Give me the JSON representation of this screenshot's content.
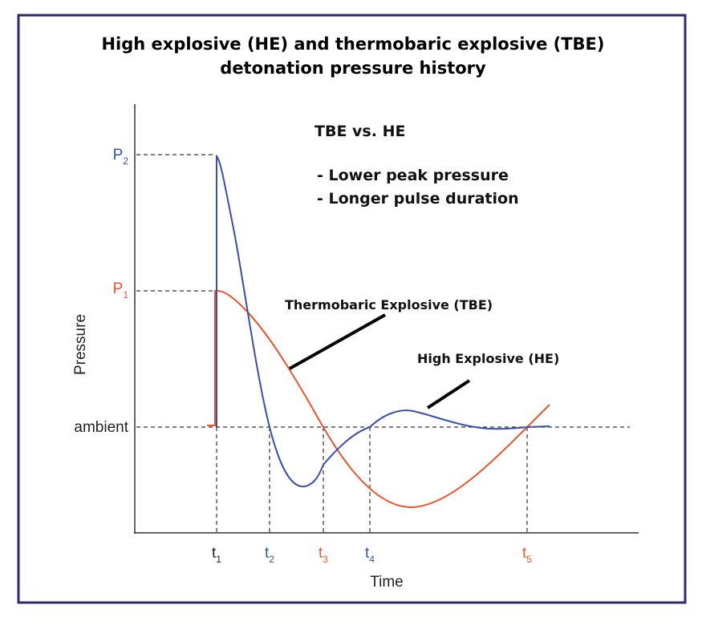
{
  "header": {
    "title_lines": [
      "High explosive (HE) and thermobaric explosive (TBE)",
      "detonation pressure history"
    ]
  },
  "axes": {
    "y_label": "Pressure",
    "x_label": "Time",
    "ambient": "ambient"
  },
  "y_markers": [
    {
      "base": "P",
      "sub": "2"
    },
    {
      "base": "P",
      "sub": "1"
    }
  ],
  "x_markers": [
    {
      "base": "t",
      "sub": "1"
    },
    {
      "base": "t",
      "sub": "2"
    },
    {
      "base": "t",
      "sub": "3"
    },
    {
      "base": "t",
      "sub": "4"
    },
    {
      "base": "t",
      "sub": "5"
    }
  ],
  "notes": {
    "heading": "TBE vs. HE",
    "points": [
      "- Lower peak pressure",
      "- Longer pulse duration"
    ]
  },
  "curve_labels": {
    "tbe": "Thermobaric Explosive (TBE)",
    "he": "High Explosive (HE)"
  }
}
